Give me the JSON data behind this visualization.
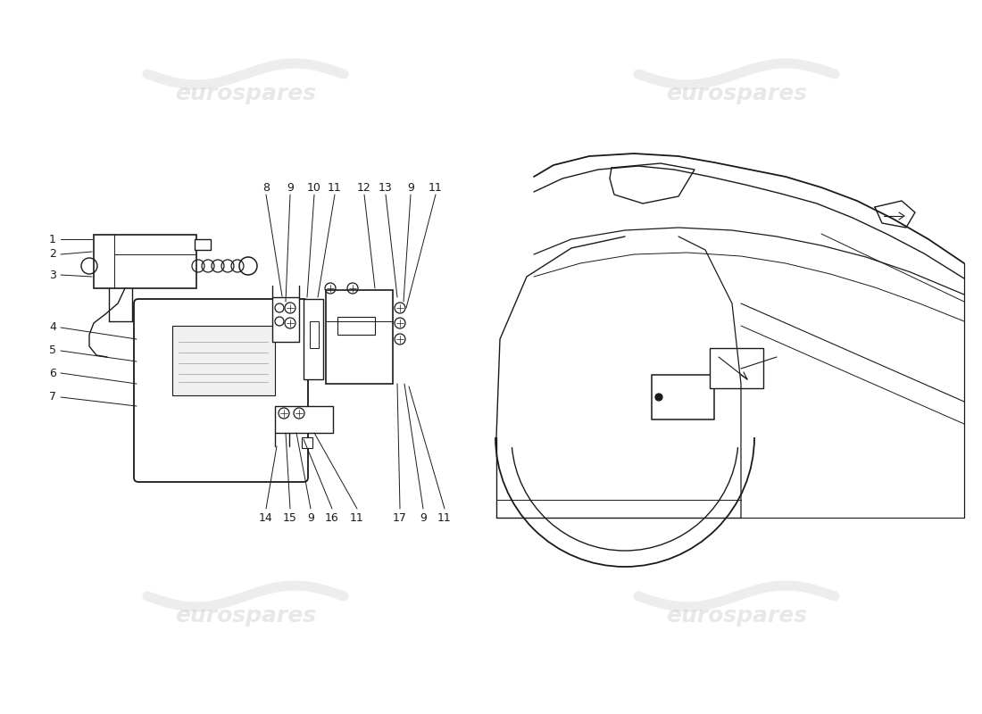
{
  "bg_color": "#ffffff",
  "line_color": "#1a1a1a",
  "fig_width": 11.0,
  "fig_height": 8.0,
  "dpi": 100,
  "watermark_text": "eurospares",
  "watermark_color": "#cccccc",
  "watermark_alpha": 0.45
}
